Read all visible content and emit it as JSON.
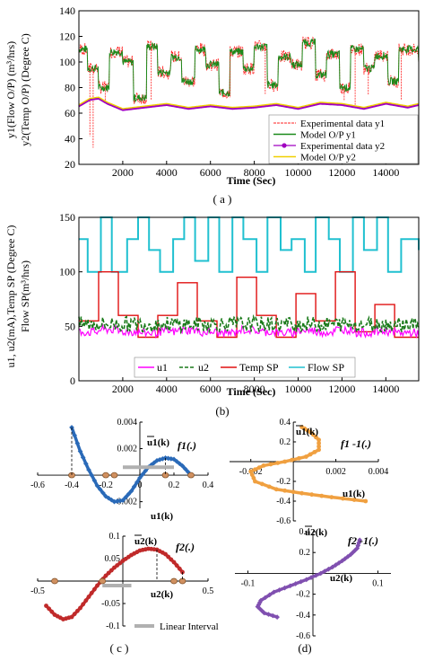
{
  "chart_data": [
    {
      "id": "a",
      "type": "line",
      "caption": "( a )",
      "ylabel": "y1(Flow O/P) (m³/hrs)",
      "ylabel2": "y2(Temp O/P) (Degree C)",
      "xlabel": "Time (Sec)",
      "xlim": [
        0,
        15500
      ],
      "ylim": [
        20,
        140
      ],
      "xticks": [
        2000,
        4000,
        6000,
        8000,
        10000,
        12000,
        14000
      ],
      "yticks": [
        20,
        40,
        60,
        80,
        100,
        120,
        140
      ],
      "legend_position": "bottom-right",
      "series": [
        {
          "name": "Experimental data y1",
          "color": "#ff2020"
        },
        {
          "name": "Model O/P y1",
          "color": "#1a8a1a"
        },
        {
          "name": "Experimental data y2",
          "color": "#a000c0"
        },
        {
          "name": "Model O/P y2",
          "color": "#f0d000"
        }
      ],
      "y1_profile": {
        "t": [
          0,
          400,
          900,
          1400,
          2000,
          2500,
          3100,
          3600,
          4200,
          4700,
          5300,
          5800,
          6400,
          6900,
          7500,
          8000,
          8600,
          9100,
          9700,
          10200,
          10800,
          11300,
          11900,
          12400,
          13000,
          13500,
          14100,
          14600,
          15500
        ],
        "level": [
          110,
          95,
          80,
          108,
          100,
          72,
          112,
          92,
          104,
          85,
          110,
          98,
          76,
          108,
          95,
          112,
          82,
          104,
          98,
          115,
          90,
          106,
          80,
          110,
          95,
          105,
          85,
          110,
          100
        ]
      },
      "y2_profile": {
        "t": [
          0,
          500,
          900,
          1300,
          2000,
          3000,
          4000,
          5000,
          6000,
          7000,
          8000,
          9000,
          10000,
          11000,
          12000,
          13000,
          14000,
          15000,
          15500
        ],
        "level": [
          66,
          71,
          72,
          68,
          63,
          65,
          67,
          64,
          66,
          64,
          65,
          67,
          64,
          68,
          67,
          64,
          68,
          65,
          67
        ]
      }
    },
    {
      "id": "b",
      "type": "line",
      "caption": "(b)",
      "ylabel": "u1, u2(mA),Temp SP (Degree C)",
      "ylabel2": "Flow SP(m³/hrs)",
      "xlabel": "Time (Sec)",
      "xlim": [
        0,
        15500
      ],
      "ylim": [
        0,
        150
      ],
      "xticks": [
        2000,
        4000,
        6000,
        8000,
        10000,
        12000,
        14000
      ],
      "yticks": [
        0,
        50,
        100,
        150
      ],
      "legend_position": "bottom",
      "series": [
        {
          "name": "u1",
          "color": "#ff00ff",
          "dash": "solid"
        },
        {
          "name": "u2",
          "color": "#1a7a1a",
          "dash": "dashed"
        },
        {
          "name": "Temp SP",
          "color": "#e01010",
          "dash": "solid"
        },
        {
          "name": "Flow SP",
          "color": "#20c0d0",
          "dash": "solid"
        }
      ],
      "flow_sp": {
        "t": [
          0,
          400,
          1000,
          1500,
          2200,
          2700,
          3200,
          3700,
          4300,
          4800,
          5300,
          5900,
          6400,
          7000,
          7500,
          8100,
          8600,
          9200,
          9700,
          10300,
          10800,
          11400,
          11900,
          12500,
          13000,
          13600,
          14100,
          14700,
          15500
        ],
        "level": [
          130,
          100,
          150,
          100,
          130,
          150,
          120,
          100,
          130,
          150,
          110,
          150,
          100,
          150,
          130,
          100,
          150,
          120,
          130,
          100,
          150,
          130,
          100,
          150,
          120,
          150,
          100,
          130,
          120
        ]
      },
      "temp_sp": {
        "t": [
          0,
          900,
          1800,
          2700,
          3600,
          4500,
          5400,
          6300,
          7200,
          8100,
          9000,
          9900,
          10800,
          11700,
          12600,
          13500,
          14400,
          15500
        ],
        "level": [
          55,
          100,
          60,
          40,
          60,
          90,
          55,
          40,
          95,
          60,
          40,
          80,
          55,
          100,
          45,
          70,
          40,
          40
        ]
      },
      "u1_level": 45,
      "u2_level": 52
    },
    {
      "id": "c",
      "type": "line",
      "caption": "( c )",
      "subplots": [
        {
          "name": "upper",
          "curve_label": "f1(.)",
          "axis_label_y": "u1(k)",
          "axis_label_x": "u1(k)",
          "xlim": [
            -0.6,
            0.4
          ],
          "ylim": [
            -0.0025,
            0.004
          ],
          "xticks": [
            -0.6,
            -0.4,
            -0.2,
            0,
            0.2,
            0.4
          ],
          "yticks": [
            -0.002,
            0.002,
            0.004
          ],
          "x": [
            -0.4,
            -0.35,
            -0.3,
            -0.25,
            -0.2,
            -0.15,
            -0.1,
            -0.05,
            0,
            0.05,
            0.1,
            0.15,
            0.2,
            0.25,
            0.3
          ],
          "y": [
            0.0036,
            0.0018,
            0.0004,
            -0.0008,
            -0.0016,
            -0.002,
            -0.0019,
            -0.0012,
            -0.0002,
            0.0006,
            0.0011,
            0.0013,
            0.0012,
            0.0007,
            0.0
          ]
        },
        {
          "name": "lower",
          "curve_label": "f2(.)",
          "axis_label_y": "u2(k)",
          "axis_label_x": "u2(k)",
          "xlim": [
            -0.5,
            0.5
          ],
          "ylim": [
            -0.1,
            0.1
          ],
          "xticks": [
            -0.5,
            0.5
          ],
          "yticks": [
            -0.1,
            -0.05,
            0.05,
            0.1
          ],
          "x": [
            -0.45,
            -0.4,
            -0.35,
            -0.3,
            -0.25,
            -0.2,
            -0.15,
            -0.1,
            -0.05,
            0,
            0.05,
            0.1,
            0.15,
            0.2,
            0.25,
            0.3,
            0.35
          ],
          "y": [
            -0.055,
            -0.075,
            -0.085,
            -0.08,
            -0.06,
            -0.035,
            -0.01,
            0.012,
            0.03,
            0.045,
            0.058,
            0.068,
            0.072,
            0.07,
            0.06,
            0.042,
            0.02
          ]
        }
      ],
      "legend": "Linear Interval"
    },
    {
      "id": "d",
      "type": "line",
      "caption": "(d)",
      "subplots": [
        {
          "name": "upper",
          "curve_label": "f1 -1(.)",
          "axis_label_y": "u1(k)",
          "axis_label_x": "u1(k)",
          "xlim": [
            -0.003,
            0.004
          ],
          "ylim": [
            -0.6,
            0.4
          ],
          "xticks": [
            -0.002,
            0.002,
            0.004
          ],
          "yticks": [
            -0.6,
            -0.4,
            -0.2,
            0.2,
            0.4
          ],
          "x": [
            0.0004,
            0.0008,
            0.0012,
            0.0012,
            0.0006,
            -0.0004,
            -0.0014,
            -0.002,
            -0.0018,
            -0.0008,
            0.0004,
            0.0018,
            0.0034
          ],
          "y": [
            0.35,
            0.3,
            0.22,
            0.12,
            0.05,
            0.0,
            -0.04,
            -0.1,
            -0.2,
            -0.28,
            -0.32,
            -0.36,
            -0.4
          ]
        },
        {
          "name": "lower",
          "curve_label": "f2 -1(.)",
          "axis_label_y": "u2(k)",
          "axis_label_x": "u2(k)",
          "xlim": [
            -0.12,
            0.12
          ],
          "ylim": [
            -0.6,
            0.4
          ],
          "xticks": [
            -0.1,
            0.1
          ],
          "yticks": [
            -0.6,
            -0.4,
            -0.2,
            0.2,
            0.4
          ],
          "x": [
            -0.055,
            -0.075,
            -0.085,
            -0.08,
            -0.06,
            -0.035,
            -0.01,
            0.012,
            0.03,
            0.045,
            0.058,
            0.068,
            0.072
          ],
          "y": [
            -0.42,
            -0.38,
            -0.32,
            -0.26,
            -0.18,
            -0.12,
            -0.06,
            0.0,
            0.06,
            0.12,
            0.18,
            0.24,
            0.32
          ]
        }
      ]
    }
  ]
}
